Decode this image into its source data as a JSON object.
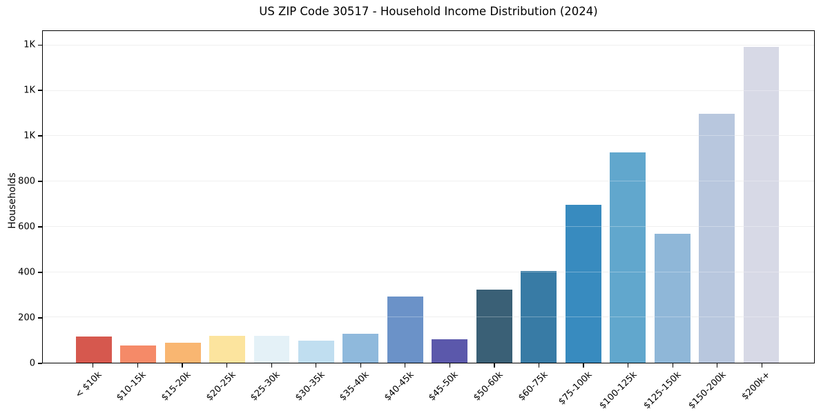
{
  "window": {
    "kind": "static-chart-figure",
    "background": "#ffffff"
  },
  "chart_data": {
    "type": "bar",
    "title": "US ZIP Code 30517 - Household Income Distribution (2024)",
    "xlabel": "",
    "ylabel": "Households",
    "categories": [
      "< $10k",
      "$10-15k",
      "$15-20k",
      "$20-25k",
      "$25-30k",
      "$30-35k",
      "$35-40k",
      "$40-45k",
      "$45-50k",
      "$50-60k",
      "$60-75k",
      "$75-100k",
      "$100-125k",
      "$125-150k",
      "$150-200k",
      "$200k+"
    ],
    "values": [
      115,
      76,
      89,
      118,
      120,
      98,
      127,
      293,
      105,
      323,
      406,
      697,
      928,
      569,
      1100,
      1394
    ],
    "bar_colors": [
      "#d6584e",
      "#f58a68",
      "#f9b671",
      "#fce49e",
      "#e4f1f7",
      "#c0def0",
      "#8fb9dc",
      "#6b92c8",
      "#5b58ab",
      "#3a6076",
      "#387ba5",
      "#388bbf",
      "#61a7cd",
      "#8fb7d8",
      "#b8c7de",
      "#d7d9e6"
    ],
    "ylim": [
      0,
      1464
    ],
    "yticks": {
      "values": [
        0,
        200,
        400,
        600,
        800,
        1000,
        1200,
        1400
      ],
      "labels": [
        "0",
        "200",
        "400",
        "600",
        "800",
        "1K",
        "1K",
        "1K"
      ]
    },
    "xtick_rotation_deg": 45,
    "grid": "horizontal light-gray lines at y ticks, drawn over bars",
    "legend": "none",
    "colors": {
      "spine": "#000000",
      "grid": "#e9e9e9",
      "text": "#000000",
      "background": "#ffffff"
    }
  }
}
